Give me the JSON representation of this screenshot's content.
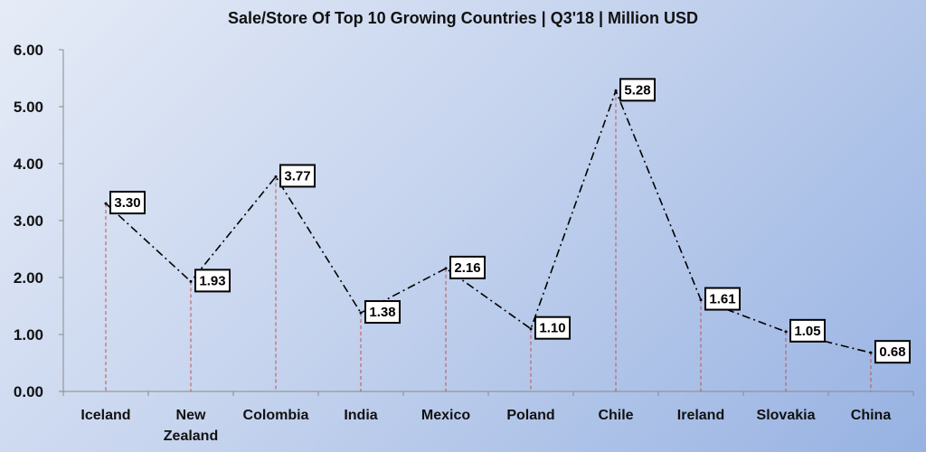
{
  "chart_data": {
    "type": "line",
    "title": "Sale/Store Of Top 10 Growing Countries | Q3'18 | Million USD",
    "xlabel": "",
    "ylabel": "",
    "categories": [
      "Iceland",
      "New Zealand",
      "Colombia",
      "India",
      "Mexico",
      "Poland",
      "Chile",
      "Ireland",
      "Slovakia",
      "China"
    ],
    "category_lines": [
      [
        "Iceland"
      ],
      [
        "New",
        "Zealand"
      ],
      [
        "Colombia"
      ],
      [
        "India"
      ],
      [
        "Mexico"
      ],
      [
        "Poland"
      ],
      [
        "Chile"
      ],
      [
        "Ireland"
      ],
      [
        "Slovakia"
      ],
      [
        "China"
      ]
    ],
    "values": [
      3.3,
      1.93,
      3.77,
      1.38,
      2.16,
      1.1,
      5.28,
      1.61,
      1.05,
      0.68
    ],
    "data_labels": [
      "3.30",
      "1.93",
      "3.77",
      "1.38",
      "2.16",
      "1.10",
      "5.28",
      "1.61",
      "1.05",
      "0.68"
    ],
    "ylim": [
      0,
      6
    ],
    "yticks": [
      "0.00",
      "1.00",
      "2.00",
      "3.00",
      "4.00",
      "5.00",
      "6.00"
    ],
    "grid": false,
    "legend": "none",
    "line_style": "dash-dot",
    "line_color": "#000000",
    "drop_line_color": "#c0504d"
  }
}
